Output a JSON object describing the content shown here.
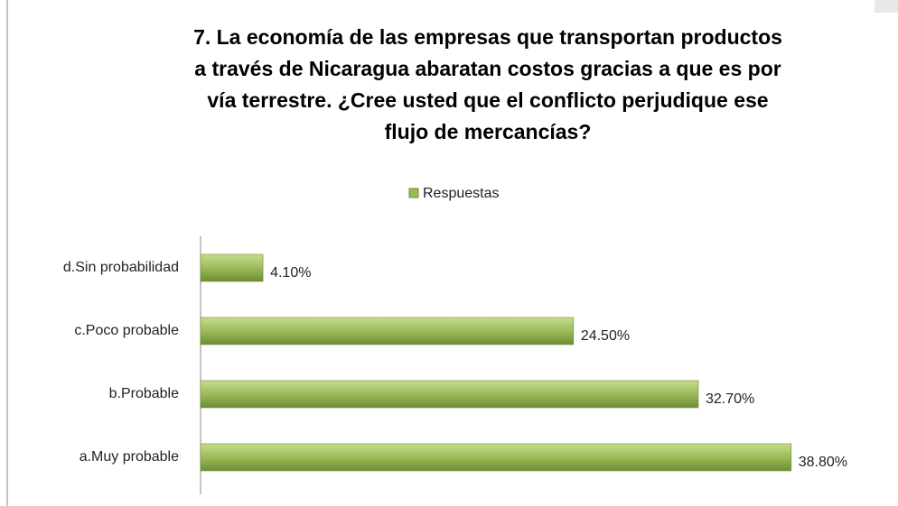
{
  "chart_data": {
    "type": "hbar",
    "title": "7. La economía de las empresas que transportan productos\na través de Nicaragua abaratan costos gracias a que es por\nvía terrestre. ¿Cree usted que el conflicto perjudique ese\nflujo de mercancías?",
    "categories": [
      "d.Sin probabilidad",
      "c.Poco probable",
      "b.Probable",
      "a.Muy probable"
    ],
    "series": [
      {
        "name": "Respuestas",
        "color": "#9bbb59",
        "values": [
          4.1,
          24.5,
          32.7,
          38.8
        ],
        "value_labels": [
          "4.10%",
          "24.50%",
          "32.70%",
          "38.80%"
        ]
      }
    ],
    "xlim": [
      0,
      40
    ],
    "legend": "top"
  }
}
